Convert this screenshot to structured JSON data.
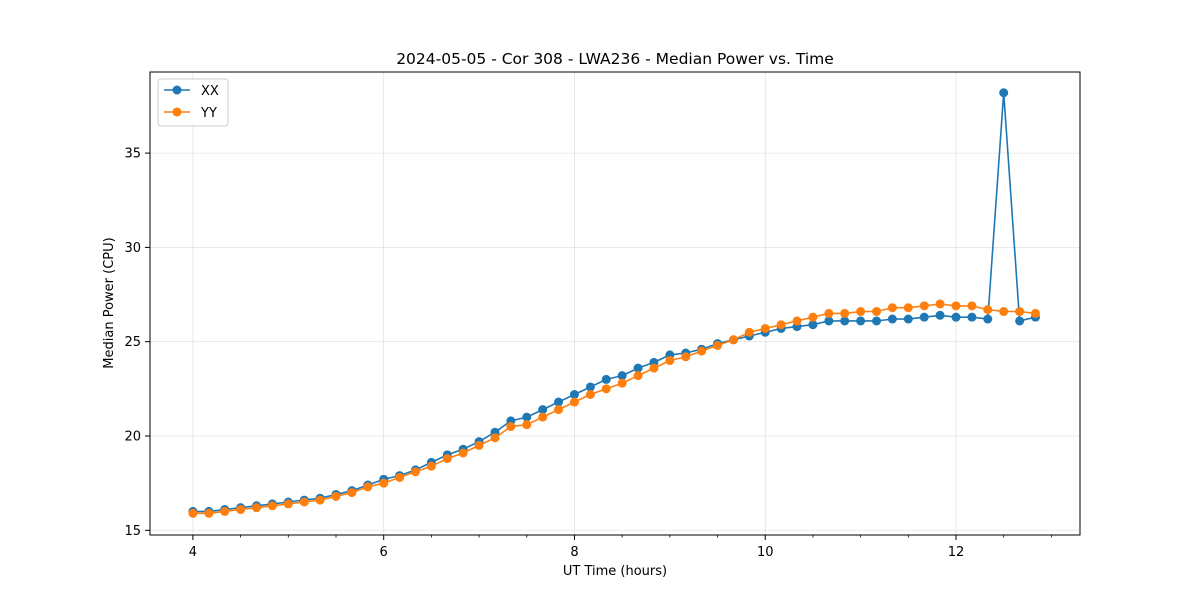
{
  "chart_data": {
    "type": "line",
    "title": "2024-05-05 - Cor 308 - LWA236 - Median Power vs. Time",
    "xlabel": "UT Time (hours)",
    "ylabel": "Median Power (CPU)",
    "xlim": [
      3.55,
      13.3
    ],
    "ylim": [
      14.75,
      39.3
    ],
    "xticks": [
      4,
      6,
      8,
      10,
      12
    ],
    "yticks": [
      15,
      20,
      25,
      30,
      35
    ],
    "xtick_labels": [
      "4",
      "6",
      "8",
      "10",
      "12"
    ],
    "ytick_labels": [
      "15",
      "20",
      "25",
      "30",
      "35"
    ],
    "x_minor_step": 0.5,
    "grid": true,
    "legend_position": "top-left",
    "series": [
      {
        "name": "XX",
        "color": "#1f77b4",
        "x": [
          4.0,
          4.167,
          4.333,
          4.5,
          4.667,
          4.833,
          5.0,
          5.167,
          5.333,
          5.5,
          5.667,
          5.833,
          6.0,
          6.167,
          6.333,
          6.5,
          6.667,
          6.833,
          7.0,
          7.167,
          7.333,
          7.5,
          7.667,
          7.833,
          8.0,
          8.167,
          8.333,
          8.5,
          8.667,
          8.833,
          9.0,
          9.167,
          9.333,
          9.5,
          9.667,
          9.833,
          10.0,
          10.167,
          10.333,
          10.5,
          10.667,
          10.833,
          11.0,
          11.167,
          11.333,
          11.5,
          11.667,
          11.833,
          12.0,
          12.167,
          12.333,
          12.5,
          12.667,
          12.833
        ],
        "values": [
          16.0,
          16.0,
          16.1,
          16.2,
          16.3,
          16.4,
          16.5,
          16.6,
          16.7,
          16.9,
          17.1,
          17.4,
          17.7,
          17.9,
          18.2,
          18.6,
          19.0,
          19.3,
          19.7,
          20.2,
          20.8,
          21.0,
          21.4,
          21.8,
          22.2,
          22.6,
          23.0,
          23.2,
          23.6,
          23.9,
          24.3,
          24.4,
          24.6,
          24.9,
          25.1,
          25.3,
          25.5,
          25.7,
          25.8,
          25.9,
          26.1,
          26.1,
          26.1,
          26.1,
          26.2,
          26.2,
          26.3,
          26.4,
          26.3,
          26.3,
          26.2,
          38.2,
          26.1,
          26.3
        ]
      },
      {
        "name": "YY",
        "color": "#ff7f0e",
        "x": [
          4.0,
          4.167,
          4.333,
          4.5,
          4.667,
          4.833,
          5.0,
          5.167,
          5.333,
          5.5,
          5.667,
          5.833,
          6.0,
          6.167,
          6.333,
          6.5,
          6.667,
          6.833,
          7.0,
          7.167,
          7.333,
          7.5,
          7.667,
          7.833,
          8.0,
          8.167,
          8.333,
          8.5,
          8.667,
          8.833,
          9.0,
          9.167,
          9.333,
          9.5,
          9.667,
          9.833,
          10.0,
          10.167,
          10.333,
          10.5,
          10.667,
          10.833,
          11.0,
          11.167,
          11.333,
          11.5,
          11.667,
          11.833,
          12.0,
          12.167,
          12.333,
          12.5,
          12.667,
          12.833
        ],
        "values": [
          15.9,
          15.9,
          16.0,
          16.1,
          16.2,
          16.3,
          16.4,
          16.5,
          16.6,
          16.8,
          17.0,
          17.3,
          17.5,
          17.8,
          18.1,
          18.4,
          18.8,
          19.1,
          19.5,
          19.9,
          20.5,
          20.6,
          21.0,
          21.4,
          21.8,
          22.2,
          22.5,
          22.8,
          23.2,
          23.6,
          24.0,
          24.2,
          24.5,
          24.8,
          25.1,
          25.5,
          25.7,
          25.9,
          26.1,
          26.3,
          26.5,
          26.5,
          26.6,
          26.6,
          26.8,
          26.8,
          26.9,
          27.0,
          26.9,
          26.9,
          26.7,
          26.6,
          26.6,
          26.5
        ]
      }
    ]
  }
}
